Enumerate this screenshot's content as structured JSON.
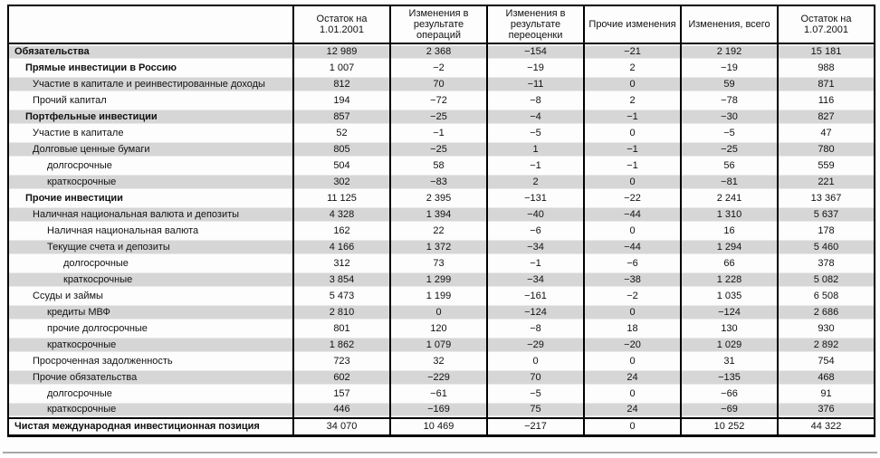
{
  "table": {
    "columns": [
      "",
      "Остаток на 1.01.2001",
      "Изменения в результате операций",
      "Изменения в результате переоценки",
      "Прочие изменения",
      "Изменения, всего",
      "Остаток на 1.07.2001"
    ],
    "rows": [
      {
        "label": "Обязательства",
        "indent": 0,
        "bold": true,
        "total": false,
        "values": [
          "12 989",
          "2 368",
          "−154",
          "−21",
          "2 192",
          "15 181"
        ]
      },
      {
        "label": "Прямые инвестиции в Россию",
        "indent": 1,
        "bold": true,
        "total": false,
        "values": [
          "1 007",
          "−2",
          "−19",
          "2",
          "−19",
          "988"
        ]
      },
      {
        "label": "Участие в капитале и реинвестированные доходы",
        "indent": 2,
        "bold": false,
        "total": false,
        "values": [
          "812",
          "70",
          "−11",
          "0",
          "59",
          "871"
        ]
      },
      {
        "label": "Прочий капитал",
        "indent": 2,
        "bold": false,
        "total": false,
        "values": [
          "194",
          "−72",
          "−8",
          "2",
          "−78",
          "116"
        ]
      },
      {
        "label": "Портфельные инвестиции",
        "indent": 1,
        "bold": true,
        "total": false,
        "values": [
          "857",
          "−25",
          "−4",
          "−1",
          "−30",
          "827"
        ]
      },
      {
        "label": "Участие в капитале",
        "indent": 2,
        "bold": false,
        "total": false,
        "values": [
          "52",
          "−1",
          "−5",
          "0",
          "−5",
          "47"
        ]
      },
      {
        "label": "Долговые ценные бумаги",
        "indent": 2,
        "bold": false,
        "total": false,
        "values": [
          "805",
          "−25",
          "1",
          "−1",
          "−25",
          "780"
        ]
      },
      {
        "label": "долгосрочные",
        "indent": 3,
        "bold": false,
        "total": false,
        "values": [
          "504",
          "58",
          "−1",
          "−1",
          "56",
          "559"
        ]
      },
      {
        "label": "краткосрочные",
        "indent": 3,
        "bold": false,
        "total": false,
        "values": [
          "302",
          "−83",
          "2",
          "0",
          "−81",
          "221"
        ]
      },
      {
        "label": "Прочие инвестиции",
        "indent": 1,
        "bold": true,
        "total": false,
        "values": [
          "11 125",
          "2 395",
          "−131",
          "−22",
          "2 241",
          "13 367"
        ]
      },
      {
        "label": "Наличная национальная валюта и депозиты",
        "indent": 2,
        "bold": false,
        "total": false,
        "values": [
          "4 328",
          "1 394",
          "−40",
          "−44",
          "1 310",
          "5 637"
        ]
      },
      {
        "label": "Наличная национальная валюта",
        "indent": 3,
        "bold": false,
        "total": false,
        "values": [
          "162",
          "22",
          "−6",
          "0",
          "16",
          "178"
        ]
      },
      {
        "label": "Текущие счета и депозиты",
        "indent": 3,
        "bold": false,
        "total": false,
        "values": [
          "4 166",
          "1 372",
          "−34",
          "−44",
          "1 294",
          "5 460"
        ]
      },
      {
        "label": "долгосрочные",
        "indent": 4,
        "bold": false,
        "total": false,
        "values": [
          "312",
          "73",
          "−1",
          "−6",
          "66",
          "378"
        ]
      },
      {
        "label": "краткосрочные",
        "indent": 4,
        "bold": false,
        "total": false,
        "values": [
          "3 854",
          "1 299",
          "−34",
          "−38",
          "1 228",
          "5 082"
        ]
      },
      {
        "label": "Ссуды и займы",
        "indent": 2,
        "bold": false,
        "total": false,
        "values": [
          "5 473",
          "1 199",
          "−161",
          "−2",
          "1 035",
          "6 508"
        ]
      },
      {
        "label": "кредиты МВФ",
        "indent": 3,
        "bold": false,
        "total": false,
        "values": [
          "2 810",
          "0",
          "−124",
          "0",
          "−124",
          "2 686"
        ]
      },
      {
        "label": "прочие долгосрочные",
        "indent": 3,
        "bold": false,
        "total": false,
        "values": [
          "801",
          "120",
          "−8",
          "18",
          "130",
          "930"
        ]
      },
      {
        "label": "краткосрочные",
        "indent": 3,
        "bold": false,
        "total": false,
        "values": [
          "1 862",
          "1 079",
          "−29",
          "−20",
          "1 029",
          "2 892"
        ]
      },
      {
        "label": "Просроченная задолженность",
        "indent": 2,
        "bold": false,
        "total": false,
        "values": [
          "723",
          "32",
          "0",
          "0",
          "31",
          "754"
        ]
      },
      {
        "label": "Прочие обязательства",
        "indent": 2,
        "bold": false,
        "total": false,
        "values": [
          "602",
          "−229",
          "70",
          "24",
          "−135",
          "468"
        ]
      },
      {
        "label": "долгосрочные",
        "indent": 3,
        "bold": false,
        "total": false,
        "values": [
          "157",
          "−61",
          "−5",
          "0",
          "−66",
          "91"
        ]
      },
      {
        "label": "краткосрочные",
        "indent": 3,
        "bold": false,
        "total": false,
        "values": [
          "446",
          "−169",
          "75",
          "24",
          "−69",
          "376"
        ]
      },
      {
        "label": "Чистая международная инвестиционная позиция",
        "indent": 0,
        "bold": true,
        "total": true,
        "values": [
          "34 070",
          "10 469",
          "−217",
          "0",
          "10 252",
          "44 322"
        ]
      }
    ]
  }
}
